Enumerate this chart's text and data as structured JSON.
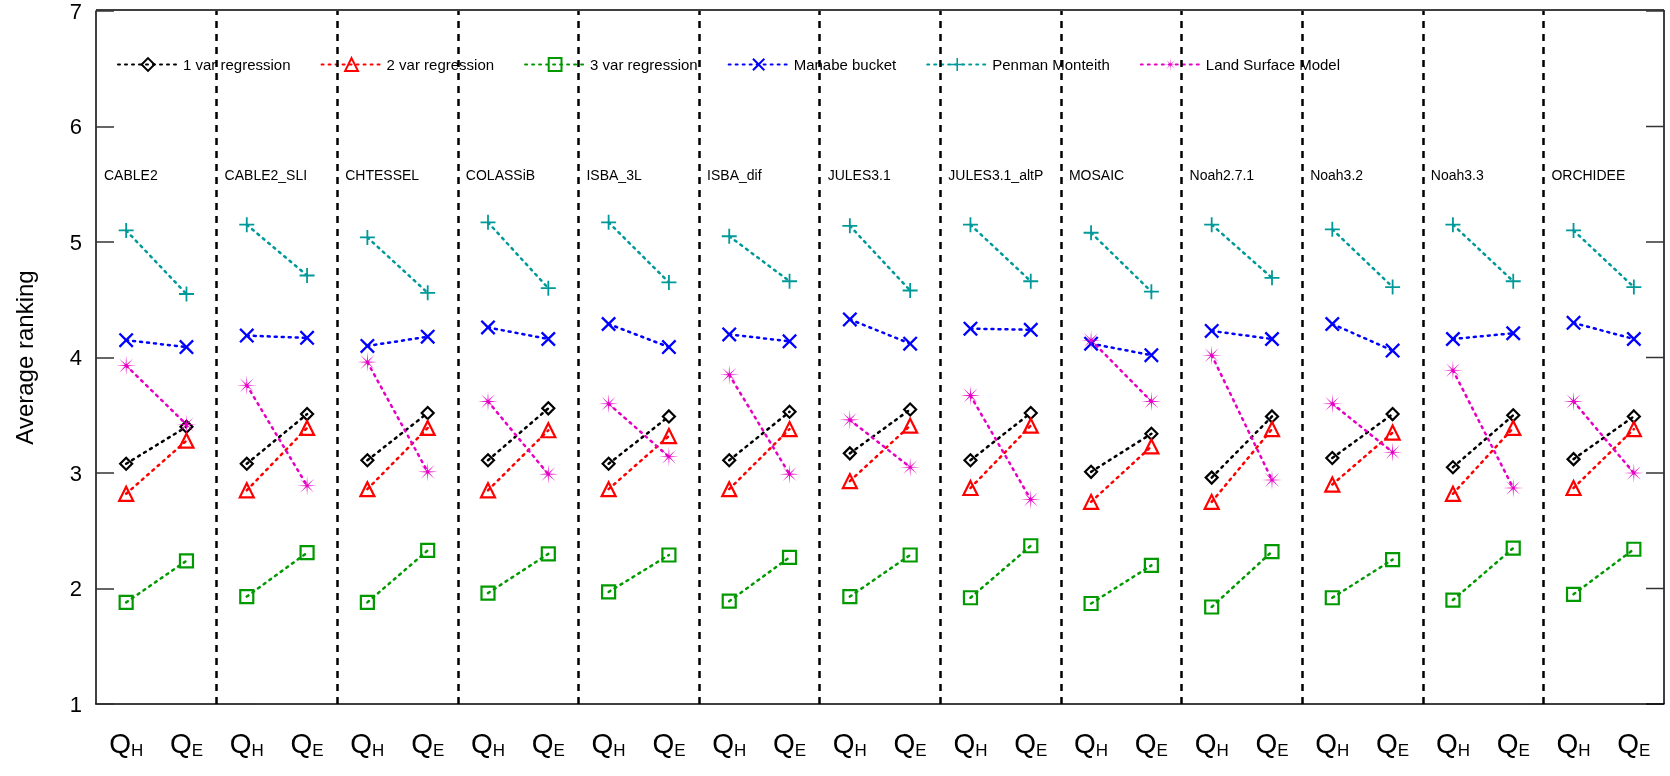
{
  "chart_data": {
    "type": "line",
    "ylabel": "Average ranking",
    "categories": [
      "Q$_{H}$",
      "Q$_{E}$",
      "Q$_{H}$",
      "Q$_{E}$",
      "Q$_{H}$",
      "Q$_{E}$",
      "Q$_{H}$",
      "Q$_{E}$",
      "Q$_{H}$",
      "Q$_{E}$",
      "Q$_{H}$",
      "Q$_{E}$",
      "Q$_{H}$",
      "Q$_{E}$",
      "Q$_{H}$",
      "Q$_{E}$",
      "Q$_{H}$",
      "Q$_{E}$",
      "Q$_{H}$",
      "Q$_{E}$",
      "Q$_{H}$",
      "Q$_{E}$",
      "Q$_{H}$",
      "Q$_{E}$",
      "Q$_{H}$",
      "Q$_{E}$"
    ],
    "ylim": [
      1,
      7
    ],
    "yticks": [
      1,
      2,
      3,
      4,
      5,
      6,
      7
    ],
    "grid": false,
    "legend": "top",
    "line_style": "dotted",
    "series": [
      {
        "name": "1 var regression",
        "color": "#000000",
        "marker": "diamond",
        "values": [
          3.08,
          3.4,
          3.08,
          3.51,
          3.11,
          3.52,
          3.11,
          3.56,
          3.08,
          3.49,
          3.11,
          3.53,
          3.17,
          3.55,
          3.11,
          3.52,
          3.01,
          3.34,
          2.96,
          3.49,
          3.13,
          3.51,
          3.05,
          3.5,
          3.12,
          3.49
        ]
      },
      {
        "name": "2 var regression",
        "color": "#ff0000",
        "marker": "triangle",
        "values": [
          2.82,
          3.28,
          2.85,
          3.39,
          2.86,
          3.39,
          2.85,
          3.37,
          2.86,
          3.32,
          2.86,
          3.38,
          2.93,
          3.41,
          2.87,
          3.41,
          2.75,
          3.23,
          2.75,
          3.38,
          2.9,
          3.35,
          2.82,
          3.39,
          2.87,
          3.38
        ]
      },
      {
        "name": "3 var regression",
        "color": "#009900",
        "marker": "square",
        "values": [
          1.88,
          2.24,
          1.93,
          2.31,
          1.88,
          2.33,
          1.96,
          2.3,
          1.97,
          2.29,
          1.89,
          2.27,
          1.93,
          2.29,
          1.92,
          2.37,
          1.87,
          2.2,
          1.84,
          2.32,
          1.92,
          2.25,
          1.9,
          2.35,
          1.95,
          2.34
        ]
      },
      {
        "name": "Manabe bucket",
        "color": "#0000ff",
        "marker": "x",
        "values": [
          4.15,
          4.09,
          4.19,
          4.17,
          4.1,
          4.18,
          4.26,
          4.16,
          4.29,
          4.09,
          4.2,
          4.14,
          4.33,
          4.12,
          4.25,
          4.24,
          4.12,
          4.02,
          4.23,
          4.16,
          4.29,
          4.06,
          4.16,
          4.21,
          4.3,
          4.16
        ]
      },
      {
        "name": "Penman Monteith",
        "color": "#009999",
        "marker": "cross",
        "values": [
          5.1,
          4.55,
          5.15,
          4.71,
          5.04,
          4.56,
          5.17,
          4.6,
          5.17,
          4.65,
          5.05,
          4.66,
          5.14,
          4.58,
          5.15,
          4.66,
          5.08,
          4.57,
          5.15,
          4.69,
          5.11,
          4.61,
          5.15,
          4.66,
          5.1,
          4.61
        ]
      },
      {
        "name": "Land Surface Model",
        "color": "#e600c4",
        "marker": "star",
        "values": [
          3.93,
          3.42,
          3.76,
          2.89,
          3.96,
          3.01,
          3.62,
          2.99,
          3.6,
          3.14,
          3.85,
          2.99,
          3.46,
          3.05,
          3.67,
          2.77,
          4.15,
          3.62,
          4.02,
          2.94,
          3.6,
          3.18,
          3.89,
          2.87,
          3.62,
          3.0
        ]
      }
    ],
    "annotations": [
      "CABLE2",
      "CABLE2_SLI",
      "CHTESSEL",
      "COLASSiB",
      "ISBA_3L",
      "ISBA_dif",
      "JULES3.1",
      "JULES3.1_altP",
      "MOSAIC",
      "Noah2.7.1",
      "Noah3.2",
      "Noah3.3",
      "ORCHIDEE"
    ]
  }
}
